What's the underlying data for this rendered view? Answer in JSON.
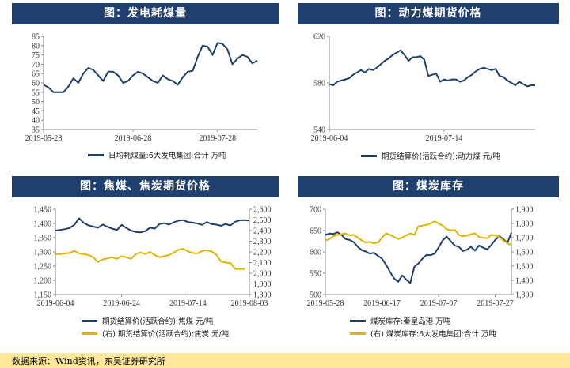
{
  "colors": {
    "navy": "#1f3f6e",
    "gold": "#e0b400",
    "title_bg": "#1f3f6e",
    "footer_bg": "#fde79a"
  },
  "panels": [
    {
      "title": "图：发电耗煤量",
      "legend": [
        {
          "label": "日均耗煤量:6大发电集团:合计  万吨",
          "color": "#1f3f6e"
        }
      ]
    },
    {
      "title": "图：动力煤期货价格",
      "legend": [
        {
          "label": "期货结算价(活跃合约):动力煤  元/吨",
          "color": "#1f3f6e"
        }
      ]
    },
    {
      "title": "图：焦煤、焦炭期货价格",
      "legend": [
        {
          "label": "期货结算价(活跃合约):焦煤  元/吨",
          "color": "#1f3f6e"
        },
        {
          "label": "(右)  期货结算价(活跃合约):焦炭  元/吨",
          "color": "#e0b400"
        }
      ]
    },
    {
      "title": "图：煤炭库存",
      "legend": [
        {
          "label": "煤炭库存:秦皇岛港  万吨",
          "color": "#1f3f6e"
        },
        {
          "label": "(右)  煤炭库存:6大发电集团:合计  万吨",
          "color": "#e0b400"
        }
      ]
    }
  ],
  "footer": {
    "source": "数据来源：Wind资讯，东吴证券研究所"
  },
  "chart_data": [
    {
      "type": "line",
      "title": "图：发电耗煤量",
      "x_ticks": [
        "2019-05-28",
        "2019-06-28",
        "2019-07-28"
      ],
      "ylim": [
        35,
        85
      ],
      "y_ticks": [
        35,
        40,
        45,
        50,
        55,
        60,
        65,
        70,
        75,
        80,
        85
      ],
      "series": [
        {
          "name": "日均耗煤量:6大发电集团:合计  万吨",
          "color": "#1f3f6e",
          "values": [
            59,
            57.5,
            55,
            55,
            55,
            58,
            62.5,
            60,
            65,
            68,
            67,
            64,
            61,
            66,
            66,
            64,
            60,
            61,
            64,
            66,
            65,
            63,
            61,
            60,
            64,
            62,
            61,
            59,
            63,
            66,
            66.5,
            74,
            80,
            79.5,
            75,
            81.5,
            81,
            78,
            70,
            73,
            75,
            74,
            70.5,
            72
          ]
        }
      ]
    },
    {
      "type": "line",
      "title": "图：动力煤期货价格",
      "x_ticks": [
        "2019-06-04",
        "2019-07-14"
      ],
      "ylim": [
        540,
        620
      ],
      "y_ticks": [
        540,
        580,
        620
      ],
      "series": [
        {
          "name": "期货结算价(活跃合约):动力煤  元/吨",
          "color": "#1f3f6e",
          "values": [
            579,
            578,
            581,
            582,
            583,
            584,
            587,
            589,
            591,
            589,
            592,
            591,
            593,
            596,
            599,
            601,
            604,
            606,
            608,
            604,
            599,
            602,
            602,
            603,
            600,
            586,
            587,
            588,
            581,
            583,
            582,
            583,
            583,
            581,
            582,
            585,
            587,
            590,
            592,
            593,
            592,
            591,
            592,
            586,
            585,
            582,
            580,
            578,
            581,
            579,
            577,
            578,
            578
          ]
        }
      ]
    },
    {
      "type": "line",
      "title": "图：焦煤、焦炭期货价格",
      "x_ticks": [
        "2019-06-04",
        "2019-06-24",
        "2019-07-14",
        "2019-08-03"
      ],
      "ylim": [
        1150,
        1450
      ],
      "y_ticks": [
        1150,
        1200,
        1250,
        1300,
        1350,
        1400,
        1450
      ],
      "y2lim": [
        1800,
        2600
      ],
      "y2_ticks": [
        1800,
        1900,
        2000,
        2100,
        2200,
        2300,
        2400,
        2500,
        2600
      ],
      "series": [
        {
          "name": "期货结算价(活跃合约):焦煤  元/吨",
          "axis": "left",
          "color": "#1f3f6e",
          "values": [
            1375,
            1377,
            1380,
            1384,
            1395,
            1418,
            1402,
            1393,
            1389,
            1385,
            1396,
            1388,
            1382,
            1377,
            1395,
            1384,
            1375,
            1370,
            1369,
            1373,
            1385,
            1382,
            1398,
            1401,
            1396,
            1404,
            1410,
            1412,
            1405,
            1403,
            1400,
            1395,
            1405,
            1398,
            1396,
            1392,
            1398,
            1393,
            1406,
            1411,
            1412,
            1410
          ]
        },
        {
          "name": "(右)  期货结算价(活跃合约):焦炭  元/吨",
          "axis": "right",
          "color": "#e0b400",
          "values": [
            2180,
            2180,
            2185,
            2190,
            2210,
            2185,
            2180,
            2170,
            2150,
            2105,
            2130,
            2140,
            2150,
            2135,
            2160,
            2150,
            2135,
            2180,
            2195,
            2180,
            2200,
            2170,
            2150,
            2160,
            2170,
            2195,
            2220,
            2230,
            2205,
            2190,
            2185,
            2210,
            2215,
            2205,
            2175,
            2110,
            2100,
            2095,
            2040,
            2040,
            2040
          ]
        }
      ]
    },
    {
      "type": "line",
      "title": "图：煤炭库存",
      "x_ticks": [
        "2019-05-28",
        "2019-06-17",
        "2019-07-07",
        "2019-07-27"
      ],
      "ylim": [
        500,
        700
      ],
      "y_ticks": [
        500,
        550,
        600,
        650,
        700
      ],
      "y2lim": [
        1300,
        1900
      ],
      "y2_ticks": [
        1300,
        1400,
        1500,
        1600,
        1700,
        1800,
        1900
      ],
      "series": [
        {
          "name": "煤炭库存:秦皇岛港  万吨",
          "axis": "left",
          "color": "#1f3f6e",
          "values": [
            640,
            643,
            642,
            646,
            640,
            630,
            628,
            623,
            612,
            604,
            601,
            596,
            598,
            591,
            584,
            570,
            553,
            538,
            530,
            545,
            535,
            527,
            565,
            573,
            584,
            593,
            592,
            596,
            610,
            627,
            636,
            625,
            615,
            612,
            602,
            605,
            612,
            603,
            615,
            610,
            606,
            616,
            628,
            637,
            630,
            621,
            645
          ]
        },
        {
          "name": "(右)  煤炭库存:6大发电集团:合计  万吨",
          "axis": "right",
          "color": "#e0b400",
          "values": [
            1680,
            1690,
            1710,
            1720,
            1725,
            1730,
            1715,
            1720,
            1700,
            1680,
            1665,
            1670,
            1660,
            1665,
            1700,
            1730,
            1720,
            1705,
            1690,
            1700,
            1715,
            1730,
            1720,
            1780,
            1785,
            1790,
            1800,
            1815,
            1800,
            1785,
            1760,
            1750,
            1755,
            1720,
            1710,
            1715,
            1725,
            1730,
            1705,
            1700,
            1695,
            1720,
            1715,
            1705,
            1680,
            1660,
            1650
          ]
        }
      ]
    }
  ]
}
